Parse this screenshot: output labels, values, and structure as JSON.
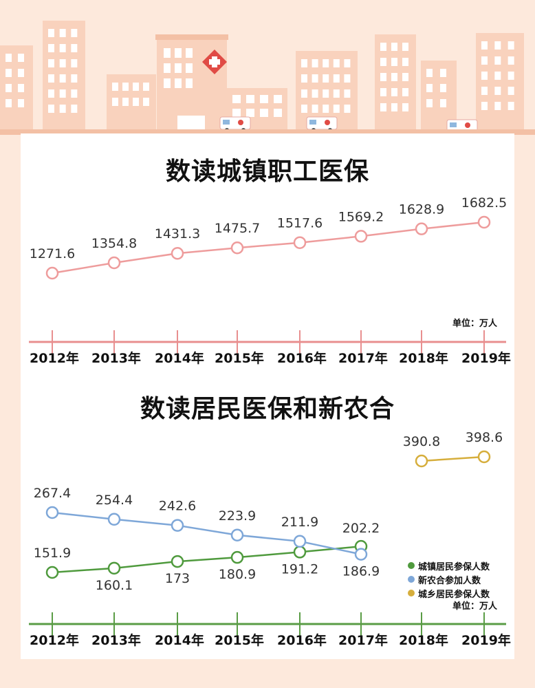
{
  "colors": {
    "page_bg": "#fde9dc",
    "panel_bg": "#ffffff",
    "building": "#f9d2bd",
    "building_dark": "#f3c0a5",
    "window": "#ffffff",
    "cross": "#e04b45",
    "employee_line": "#ee9c9c",
    "employee_axis": "#e88f8f",
    "urban": "#4f9a3d",
    "ncms": "#7ea7d8",
    "urban_rural": "#d6ae3c",
    "resident_axis": "#5a9c45"
  },
  "chart_data": [
    {
      "type": "line",
      "title": "数读城镇职工医保",
      "unit_label": "单位：万人",
      "categories": [
        "2012年",
        "2013年",
        "2014年",
        "2015年",
        "2016年",
        "2017年",
        "2018年",
        "2019年"
      ],
      "series": [
        {
          "values": [
            1271.6,
            1354.8,
            1431.3,
            1475.7,
            1517.6,
            1569.2,
            1628.9,
            1682.5
          ],
          "color": "#ee9c9c"
        }
      ],
      "grid": false,
      "legend": "none"
    },
    {
      "type": "line",
      "title": "数读居民医保和新农合",
      "unit_label": "单位：万人",
      "categories": [
        "2012年",
        "2013年",
        "2014年",
        "2015年",
        "2016年",
        "2017年",
        "2018年",
        "2019年"
      ],
      "series": [
        {
          "name": "城镇居民参保人数",
          "values": [
            151.9,
            160.1,
            173,
            180.9,
            191.2,
            202.2,
            null,
            null
          ],
          "color": "#4f9a3d"
        },
        {
          "name": "新农合参加人数",
          "values": [
            267.4,
            254.4,
            242.6,
            223.9,
            211.9,
            186.9,
            null,
            null
          ],
          "color": "#7ea7d8"
        },
        {
          "name": "城乡居民参保人数",
          "values": [
            null,
            null,
            null,
            null,
            null,
            null,
            390.8,
            398.6
          ],
          "color": "#d6ae3c"
        }
      ],
      "grid": false,
      "legend": "bottom-right"
    }
  ]
}
